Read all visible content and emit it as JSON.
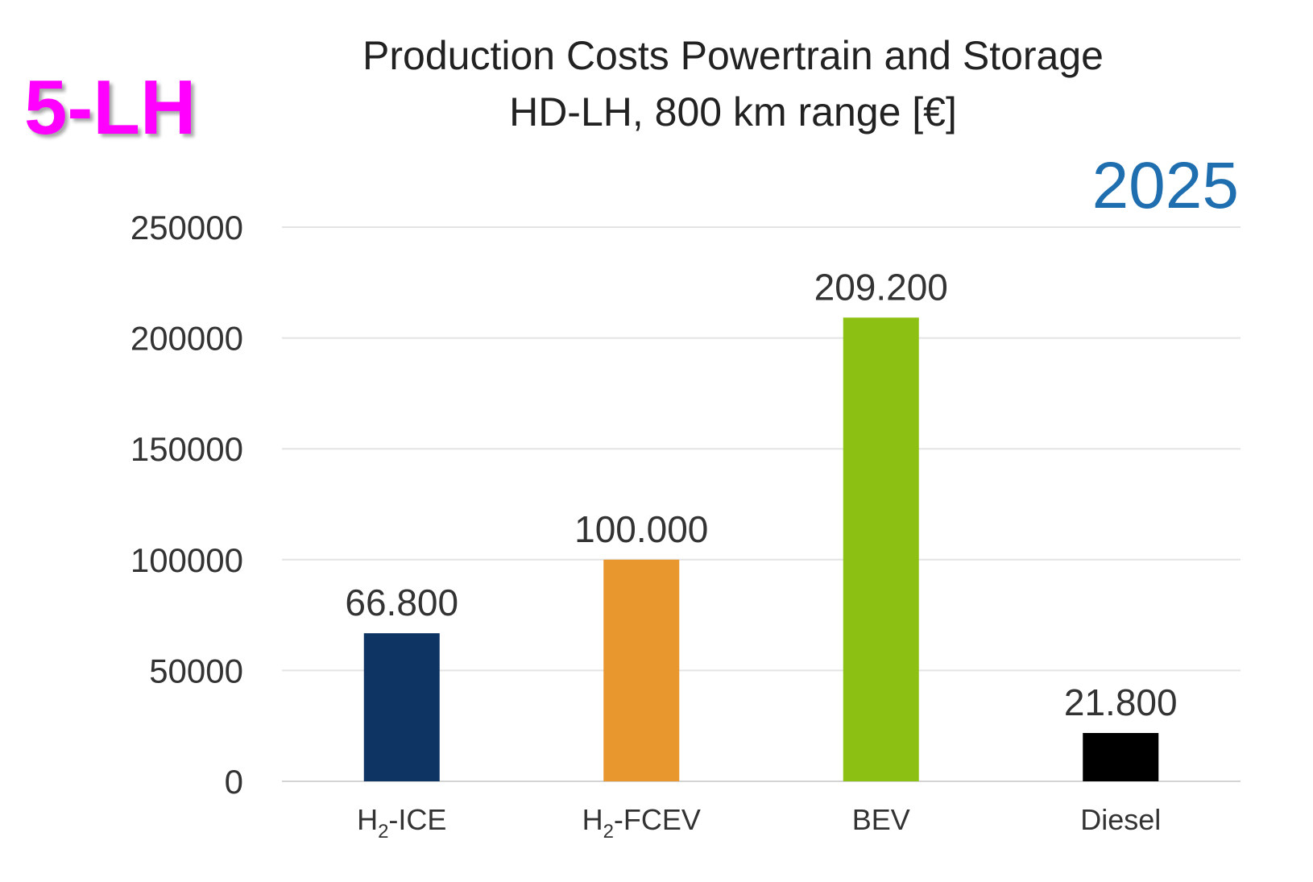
{
  "badge": {
    "text": "5-LH",
    "color": "#ff00ff"
  },
  "year_label": {
    "text": "2025",
    "color": "#1f6fb0"
  },
  "chart_data": {
    "type": "bar",
    "title": "Production Costs Powertrain and Storage",
    "subtitle": "HD-LH, 800 km range [€]",
    "categories": [
      "H2-ICE",
      "H2-FCEV",
      "BEV",
      "Diesel"
    ],
    "categories_display": [
      {
        "pre": "H",
        "sub": "2",
        "post": "-ICE"
      },
      {
        "pre": "H",
        "sub": "2",
        "post": "-FCEV"
      },
      {
        "pre": "BEV",
        "sub": "",
        "post": ""
      },
      {
        "pre": "Diesel",
        "sub": "",
        "post": ""
      }
    ],
    "values": [
      66800,
      100000,
      209200,
      21800
    ],
    "data_labels": [
      "66.800",
      "100.000",
      "209.200",
      "21.800"
    ],
    "colors": [
      "#0e3463",
      "#e8962e",
      "#8cc114",
      "#000000"
    ],
    "ylim": [
      0,
      250000
    ],
    "yticks": [
      0,
      50000,
      100000,
      150000,
      200000,
      250000
    ],
    "ytick_labels": [
      "0",
      "50000",
      "100000",
      "150000",
      "200000",
      "250000"
    ],
    "xlabel": "",
    "ylabel": "",
    "grid": true,
    "legend": "none"
  }
}
